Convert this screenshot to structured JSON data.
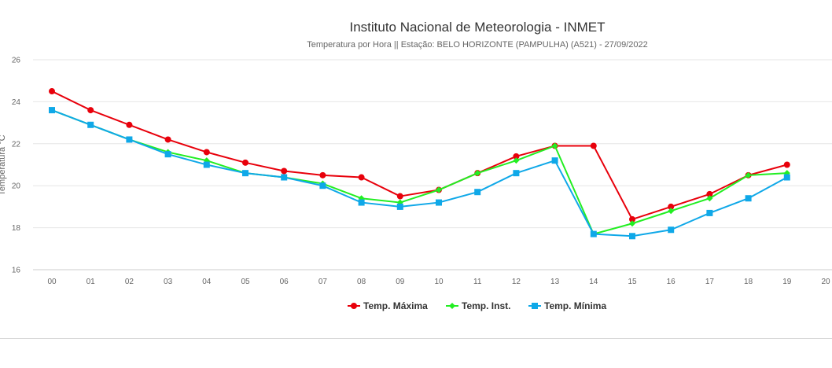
{
  "chart_data": {
    "type": "line",
    "title": "Instituto Nacional de Meteorologia - INMET",
    "subtitle": "Temperatura por Hora || Estação: BELO HORIZONTE (PAMPULHA) (A521) - 27/09/2022",
    "ylabel": "Temperatura °C",
    "xlabel": "",
    "categories": [
      "00",
      "01",
      "02",
      "03",
      "04",
      "05",
      "06",
      "07",
      "08",
      "09",
      "10",
      "11",
      "12",
      "13",
      "14",
      "15",
      "16",
      "17",
      "18",
      "19",
      "20"
    ],
    "yticks": [
      16,
      18,
      20,
      22,
      24,
      26
    ],
    "ylim": [
      16,
      26
    ],
    "grid": true,
    "legend_position": "bottom-center",
    "series": [
      {
        "name": "Temp. Máxima",
        "color": "#e8000b",
        "marker": "circle",
        "values": [
          24.5,
          23.6,
          22.9,
          22.2,
          21.6,
          21.1,
          20.7,
          20.5,
          20.4,
          19.5,
          19.8,
          20.6,
          21.4,
          21.9,
          21.9,
          18.4,
          19.0,
          19.6,
          20.5,
          21.0,
          null
        ]
      },
      {
        "name": "Temp. Inst.",
        "color": "#22ee22",
        "marker": "diamond",
        "values": [
          23.6,
          22.9,
          22.2,
          21.6,
          21.2,
          20.6,
          20.4,
          20.1,
          19.4,
          19.2,
          19.8,
          20.6,
          21.2,
          21.9,
          17.7,
          18.2,
          18.8,
          19.4,
          20.5,
          20.6,
          null
        ]
      },
      {
        "name": "Temp. Mínima",
        "color": "#0fa8e8",
        "marker": "square",
        "values": [
          23.6,
          22.9,
          22.2,
          21.5,
          21.0,
          20.6,
          20.4,
          20.0,
          19.2,
          19.0,
          19.2,
          19.7,
          20.6,
          21.2,
          17.7,
          17.6,
          17.9,
          18.7,
          19.4,
          20.4,
          null
        ]
      }
    ]
  }
}
